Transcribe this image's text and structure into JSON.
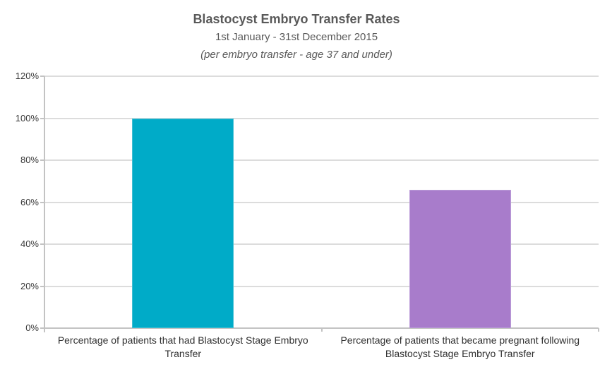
{
  "chart_data": {
    "type": "bar",
    "title": "Blastocyst Embryo Transfer Rates",
    "subtitle": "1st January - 31st December 2015",
    "note": "(per embryo transfer - age 37 and under)",
    "categories": [
      "Percentage of patients that had Blastocyst Stage Embryo Transfer",
      "Percentage of patients that became pregnant following Blastocyst Stage Embryo Transfer"
    ],
    "values": [
      100,
      66
    ],
    "value_unit": "%",
    "ylim": [
      0,
      120
    ],
    "ytick_step": 20,
    "ytick_labels": [
      "0%",
      "20%",
      "40%",
      "60%",
      "80%",
      "100%",
      "120%"
    ],
    "grid": true,
    "legend": "none",
    "bar_colors": [
      "#00abc8",
      "#a87ccb"
    ],
    "bar_border_colors": [
      "#45c0d4",
      "#bb9cd8"
    ]
  },
  "colors": {
    "background": "#ffffff",
    "title_text": "#595959",
    "axis_label_text": "#383838",
    "gridline": "#dcdcdc",
    "axis_line": "#c3c3c3",
    "bar_teal": "#00abc8",
    "bar_purple": "#a87ccb"
  }
}
